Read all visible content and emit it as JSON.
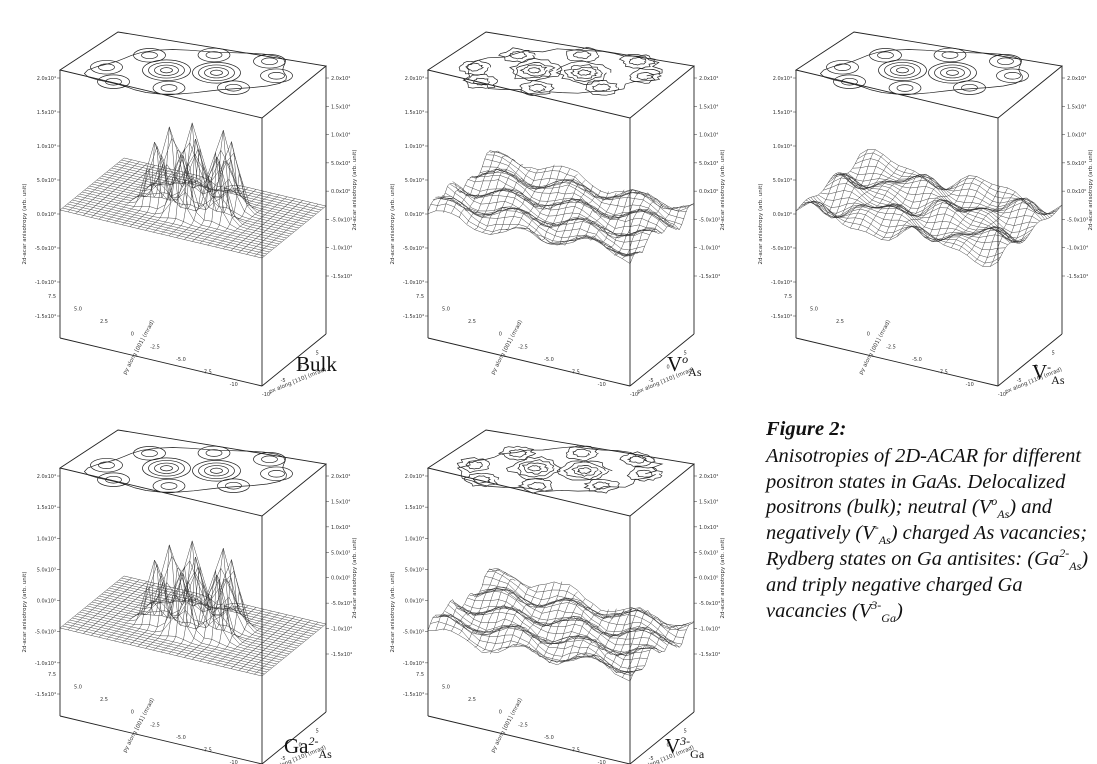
{
  "panels": [
    {
      "id": "bulk",
      "label_main": "Bulk",
      "label_sup": "",
      "label_sub": "",
      "peaks": "strong"
    },
    {
      "id": "v0as",
      "label_main": "V",
      "label_sup": "o",
      "label_sub": "As",
      "peaks": "noisy"
    },
    {
      "id": "vmas",
      "label_main": "V",
      "label_sup": "-",
      "label_sub": "As",
      "peaks": "weak"
    },
    {
      "id": "ga2as",
      "label_main": "Ga",
      "label_sup": "2-",
      "label_sub": "As",
      "peaks": "strong"
    },
    {
      "id": "v3ga",
      "label_main": "V",
      "label_sup": "3-",
      "label_sub": "Ga",
      "peaks": "noisy"
    }
  ],
  "axis": {
    "z_label": "2d-acar anisotropy (arb. unit)",
    "x_label": "px along [110] (mrad)",
    "y_label": "py along [001] (mrad)",
    "z_ticks_left": [
      "2.0x10⁴",
      "1.5x10⁴",
      "1.0x10⁴",
      "5.0x10³",
      "0.0x10⁰",
      "-5.0x10³",
      "-1.0x10⁴",
      "-1.5x10⁴"
    ],
    "z_ticks_right": [
      "2.0x10⁴",
      "1.5x10⁴",
      "1.0x10⁴",
      "5.0x10³",
      "0.0x10⁰",
      "-5.0x10³",
      "-1.0x10⁴",
      "-1.5x10⁴"
    ],
    "y_ticks": [
      "7.5",
      "5.0",
      "2.5",
      "0",
      "-2.5",
      "-5.0",
      "-7.5",
      "-10"
    ],
    "x_ticks": [
      "-10",
      "-5",
      "0",
      "5"
    ]
  },
  "caption": {
    "title": "Figure 2:",
    "line1": "Anisotropies of 2D-ACAR for different positron states in GaAs. Delocalized positrons (bulk); neutral (V",
    "v0_sup": "o",
    "v0_sub": "As",
    "line2": ") and negatively (V",
    "vm_sup": "-",
    "vm_sub": "As",
    "line3": ") charged As vacancies; Rydberg states on Ga antisites: (Ga",
    "ga_sup": "2-",
    "ga_sub": "As",
    "line4": ") and triply negative charged Ga vacancies (V",
    "v3_sup": "3-",
    "v3_sub": "Ga",
    "line5": ")"
  }
}
